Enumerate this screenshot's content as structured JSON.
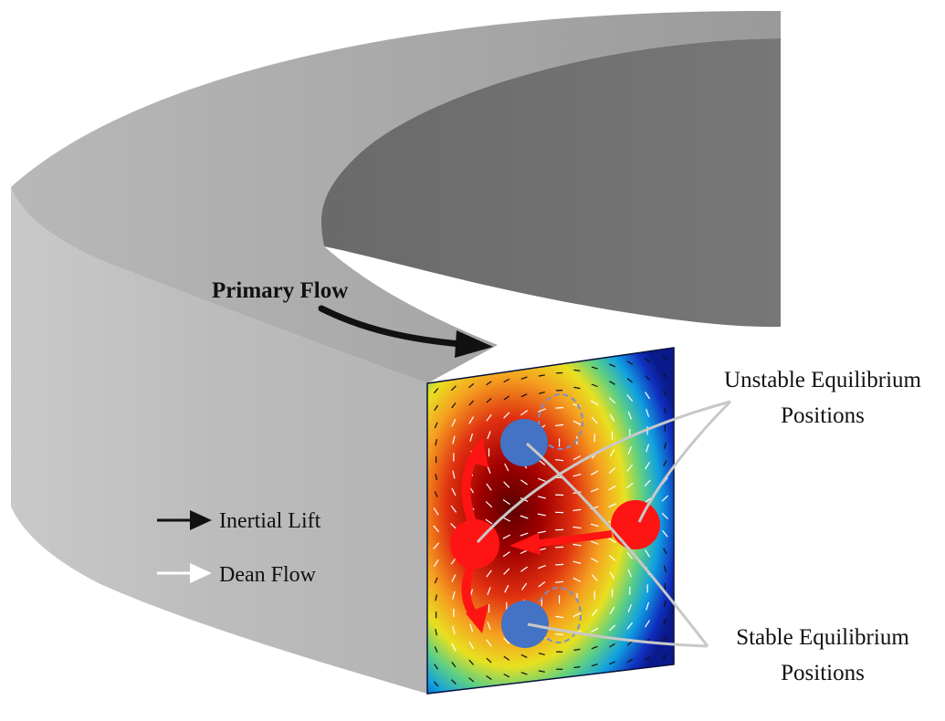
{
  "labels": {
    "primary_flow": "Primary Flow",
    "unstable_line1": "Unstable Equilibrium",
    "unstable_line2": "Positions",
    "stable_line1": "Stable Equilibrium",
    "stable_line2": "Positions",
    "legend_inertial": "Inertial Lift",
    "legend_dean": "Dean Flow"
  },
  "colors": {
    "channel_top": "#a9a9a9",
    "channel_inner_wall": "#6e6e6e",
    "channel_outer_wall": "#b9b9b9",
    "unstable_marker": "#ff1414",
    "stable_marker": "#4472c4",
    "pointer_line": "#c0c0c0",
    "colormap_low": "#0a1a8c",
    "colormap_high": "#7a0000"
  }
}
